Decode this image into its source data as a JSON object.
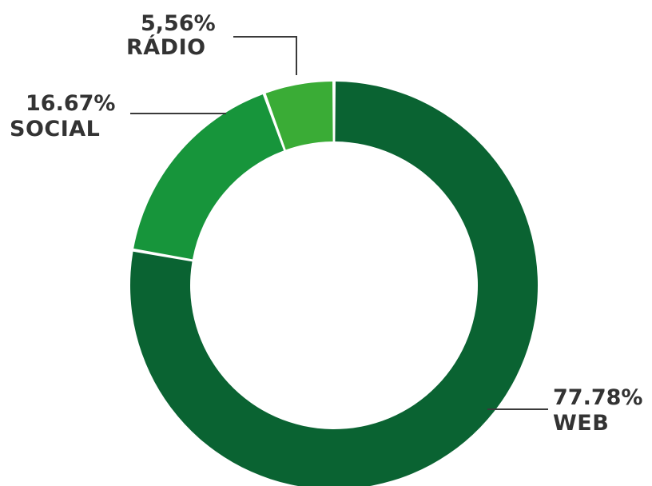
{
  "chart_data": {
    "type": "pie",
    "donut": true,
    "categories": [
      "WEB",
      "SOCIAL",
      "RÁDIO"
    ],
    "values": [
      77.78,
      16.67,
      5.56
    ],
    "labels": [
      {
        "percent": "77.78%",
        "name": "WEB"
      },
      {
        "percent": "16.67%",
        "name": "SOCIAL"
      },
      {
        "percent": "5,56%",
        "name": "RÁDIO"
      }
    ],
    "colors": [
      "#0a6332",
      "#17953b",
      "#3aac36"
    ],
    "start": "12 o'clock",
    "direction": "clockwise",
    "title": "",
    "legend": "none"
  }
}
